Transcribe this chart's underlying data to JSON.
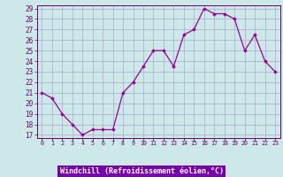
{
  "hours": [
    0,
    1,
    2,
    3,
    4,
    5,
    6,
    7,
    8,
    9,
    10,
    11,
    12,
    13,
    14,
    15,
    16,
    17,
    18,
    19,
    20,
    21,
    22,
    23
  ],
  "values": [
    21.0,
    20.5,
    19.0,
    18.0,
    17.0,
    17.5,
    17.5,
    17.5,
    21.0,
    22.0,
    23.5,
    25.0,
    25.0,
    23.5,
    26.5,
    27.0,
    29.0,
    28.5,
    28.5,
    28.0,
    25.0,
    26.5,
    24.0,
    23.0
  ],
  "line_color": "#990099",
  "marker": "D",
  "marker_size": 1.8,
  "bg_color": "#cce8e8",
  "grid_color": "#aaaacc",
  "xlabel": "Windchill (Refroidissement éolien,°C)",
  "tick_color": "#660066",
  "ylim_min": 17,
  "ylim_max": 29,
  "yticks": [
    17,
    18,
    19,
    20,
    21,
    22,
    23,
    24,
    25,
    26,
    27,
    28,
    29
  ],
  "xtick_labels": [
    "0",
    "1",
    "2",
    "3",
    "4",
    "5",
    "6",
    "7",
    "8",
    "9",
    "10",
    "11",
    "12",
    "13",
    "14",
    "15",
    "16",
    "17",
    "18",
    "19",
    "20",
    "21",
    "22",
    "23"
  ],
  "spine_color": "#660066",
  "xlabel_bg_color": "#7700aa",
  "xlabel_text_color": "#ffffff"
}
